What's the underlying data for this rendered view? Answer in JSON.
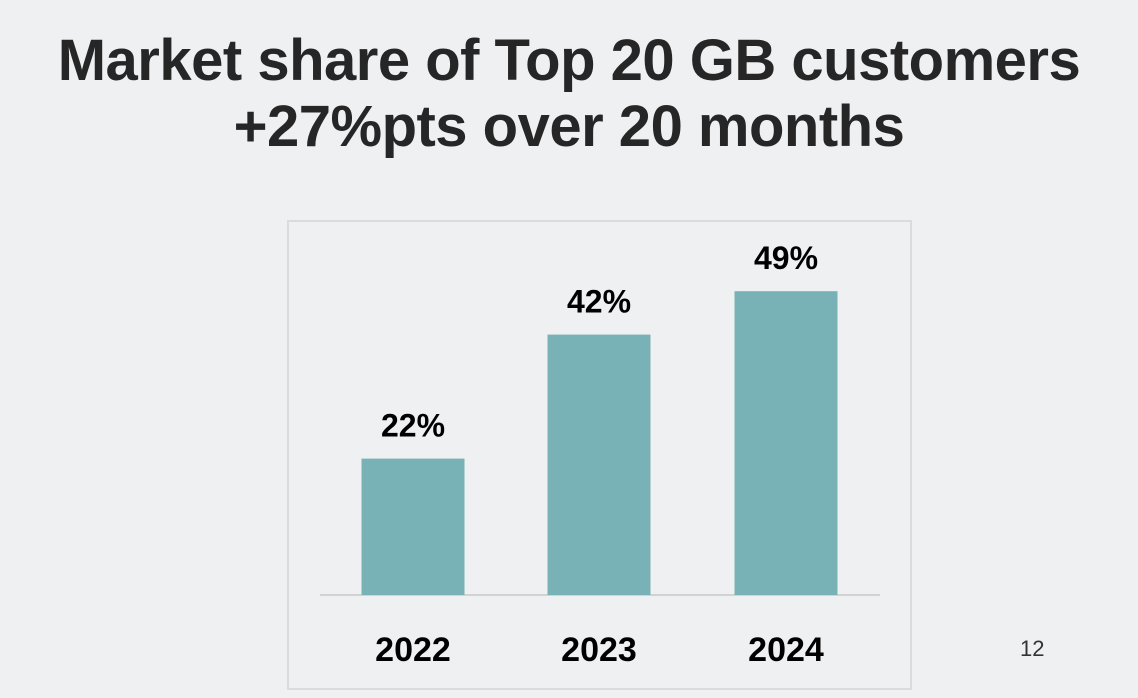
{
  "slide": {
    "title_line1": "Market share of Top 20 GB customers",
    "title_line2": "+27%pts over 20 months",
    "page_number": "12"
  },
  "colors": {
    "background": "#eff0f2",
    "bar": "#78b2b6",
    "text": "#000000",
    "axis": "#d0d2d4"
  },
  "chart_data": {
    "type": "bar",
    "categories": [
      "2022",
      "2023",
      "2024"
    ],
    "values": [
      22,
      42,
      49
    ],
    "data_labels": [
      "22%",
      "42%",
      "49%"
    ],
    "title": "",
    "xlabel": "",
    "ylabel": "",
    "ylim": [
      0,
      55
    ],
    "grid": false,
    "legend": "none"
  }
}
